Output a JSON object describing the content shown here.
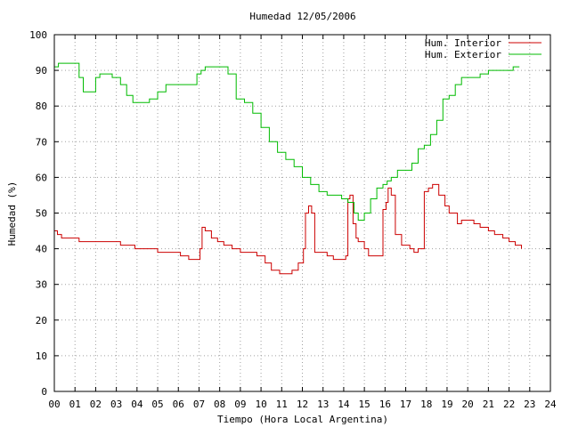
{
  "chart_data": {
    "type": "line",
    "title": "Humedad 12/05/2006",
    "xlabel": "Tiempo (Hora Local Argentina)",
    "ylabel": "Humedad (%)",
    "xlim": [
      0,
      24
    ],
    "ylim": [
      0,
      100
    ],
    "xticks": [
      "00",
      "01",
      "02",
      "03",
      "04",
      "05",
      "06",
      "07",
      "08",
      "09",
      "10",
      "11",
      "12",
      "13",
      "14",
      "15",
      "16",
      "17",
      "18",
      "19",
      "20",
      "21",
      "22",
      "23",
      "24"
    ],
    "yticks": [
      "0",
      "10",
      "20",
      "30",
      "40",
      "50",
      "60",
      "70",
      "80",
      "90",
      "100"
    ],
    "grid": true,
    "legend_position": "top-right",
    "series": [
      {
        "name": "Hum. Interior",
        "color": "#cc0000",
        "x": [
          0.0,
          0.15,
          0.35,
          0.6,
          1.0,
          1.2,
          1.4,
          1.6,
          1.9,
          2.2,
          2.4,
          2.8,
          3.2,
          3.6,
          3.9,
          4.2,
          4.6,
          5.0,
          5.4,
          5.8,
          6.1,
          6.5,
          6.9,
          7.05,
          7.15,
          7.3,
          7.6,
          7.9,
          8.2,
          8.6,
          9.0,
          9.4,
          9.8,
          10.2,
          10.5,
          10.9,
          11.2,
          11.5,
          11.8,
          11.95,
          12.05,
          12.15,
          12.3,
          12.45,
          12.6,
          12.9,
          13.2,
          13.5,
          13.9,
          14.1,
          14.2,
          14.3,
          14.45,
          14.6,
          14.7,
          15.0,
          15.2,
          15.5,
          15.9,
          16.05,
          16.15,
          16.3,
          16.5,
          16.8,
          17.0,
          17.2,
          17.4,
          17.6,
          17.9,
          18.1,
          18.3,
          18.6,
          18.9,
          19.1,
          19.2,
          19.35,
          19.5,
          19.7,
          20.0,
          20.3,
          20.6,
          21.0,
          21.3,
          21.7,
          22.0,
          22.3,
          22.5,
          22.6
        ],
        "values": [
          45,
          44,
          43,
          43,
          43,
          42,
          42,
          42,
          42,
          42,
          42,
          42,
          41,
          41,
          40,
          40,
          40,
          39,
          39,
          39,
          38,
          37,
          37,
          40,
          46,
          45,
          43,
          42,
          41,
          40,
          39,
          39,
          38,
          36,
          34,
          33,
          33,
          34,
          36,
          36,
          40,
          50,
          52,
          50,
          39,
          39,
          38,
          37,
          37,
          38,
          54,
          55,
          47,
          43,
          42,
          40,
          38,
          38,
          51,
          53,
          57,
          55,
          44,
          41,
          41,
          40,
          39,
          40,
          56,
          57,
          58,
          55,
          52,
          50,
          50,
          50,
          47,
          48,
          48,
          47,
          46,
          45,
          44,
          43,
          42,
          41,
          41,
          40
        ],
        "legend_label": "Hum. Interior"
      },
      {
        "name": "Hum. Exterior",
        "color": "#00bb00",
        "x": [
          0.0,
          0.2,
          0.5,
          0.8,
          1.0,
          1.2,
          1.4,
          1.6,
          1.8,
          2.0,
          2.2,
          2.5,
          2.8,
          3.2,
          3.5,
          3.8,
          4.2,
          4.6,
          5.0,
          5.4,
          5.8,
          6.2,
          6.6,
          6.9,
          7.1,
          7.3,
          7.6,
          8.0,
          8.4,
          8.8,
          9.2,
          9.6,
          10.0,
          10.4,
          10.8,
          11.2,
          11.6,
          12.0,
          12.4,
          12.8,
          13.2,
          13.6,
          13.9,
          14.2,
          14.5,
          14.7,
          15.0,
          15.3,
          15.6,
          15.9,
          16.1,
          16.3,
          16.6,
          17.0,
          17.3,
          17.6,
          17.9,
          18.2,
          18.5,
          18.8,
          19.1,
          19.4,
          19.7,
          20.0,
          20.3,
          20.6,
          21.0,
          21.4,
          21.8,
          22.2,
          22.5
        ],
        "values": [
          91,
          92,
          92,
          92,
          92,
          88,
          84,
          84,
          84,
          88,
          89,
          89,
          88,
          86,
          83,
          81,
          81,
          82,
          84,
          86,
          86,
          86,
          86,
          89,
          90,
          91,
          91,
          91,
          89,
          82,
          81,
          78,
          74,
          70,
          67,
          65,
          63,
          60,
          58,
          56,
          55,
          55,
          54,
          53,
          50,
          48,
          50,
          54,
          57,
          58,
          59,
          60,
          62,
          62,
          64,
          68,
          69,
          72,
          76,
          82,
          83,
          86,
          88,
          88,
          88,
          89,
          90,
          90,
          90,
          91,
          91
        ],
        "legend_label": "Hum. Exterior"
      }
    ]
  }
}
